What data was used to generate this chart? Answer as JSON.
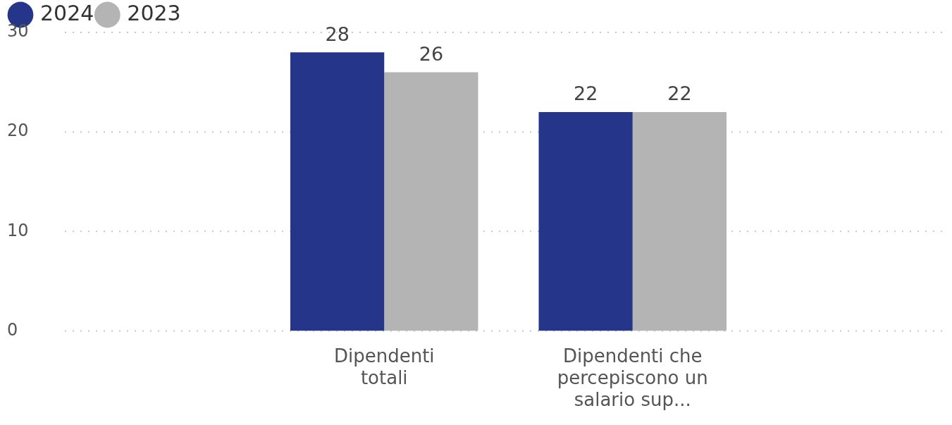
{
  "chart_data": {
    "type": "bar",
    "categories": [
      "Dipendenti totali",
      "Dipendenti che percepiscono un salario sup..."
    ],
    "series": [
      {
        "name": "2024",
        "color": "#25358a",
        "values": [
          28,
          22
        ]
      },
      {
        "name": "2023",
        "color": "#b4b4b4",
        "values": [
          26,
          22
        ]
      }
    ],
    "ylim": [
      0,
      30
    ],
    "yticks": [
      0,
      10,
      20,
      30
    ],
    "grid": "y",
    "legend": "top left",
    "data_labels": true
  }
}
